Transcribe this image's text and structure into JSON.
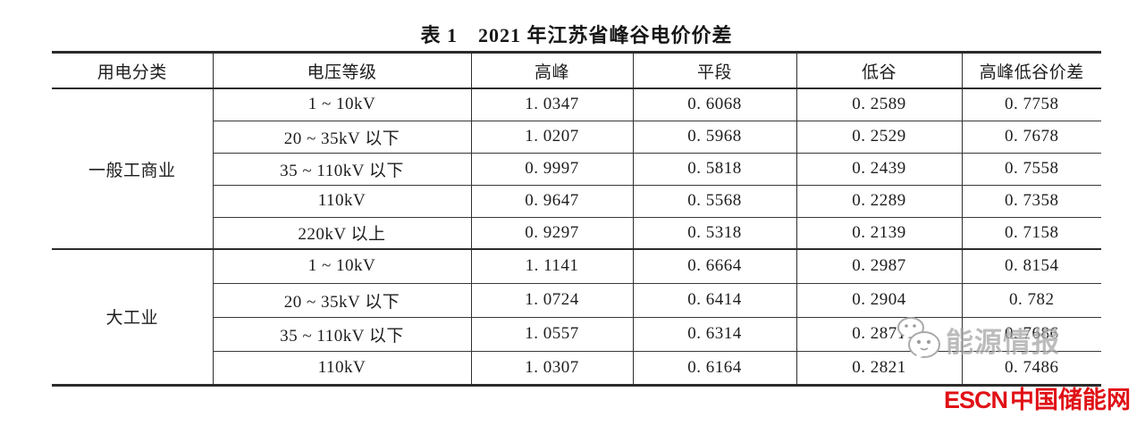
{
  "table": {
    "title": "表 1　2021 年江苏省峰谷电价价差",
    "columns": [
      "用电分类",
      "电压等级",
      "高峰",
      "平段",
      "低谷",
      "高峰低谷价差"
    ],
    "groups": [
      {
        "category": "一般工商业",
        "rows": [
          {
            "voltage": "1 ~ 10kV",
            "peak": "1. 0347",
            "flat": "0. 6068",
            "valley": "0. 2589",
            "diff": "0. 7758"
          },
          {
            "voltage": "20 ~ 35kV 以下",
            "peak": "1. 0207",
            "flat": "0. 5968",
            "valley": "0. 2529",
            "diff": "0. 7678"
          },
          {
            "voltage": "35 ~ 110kV 以下",
            "peak": "0. 9997",
            "flat": "0. 5818",
            "valley": "0. 2439",
            "diff": "0. 7558"
          },
          {
            "voltage": "110kV",
            "peak": "0. 9647",
            "flat": "0. 5568",
            "valley": "0. 2289",
            "diff": "0. 7358"
          },
          {
            "voltage": "220kV 以上",
            "peak": "0. 9297",
            "flat": "0. 5318",
            "valley": "0. 2139",
            "diff": "0. 7158"
          }
        ]
      },
      {
        "category": "大工业",
        "rows": [
          {
            "voltage": "1 ~ 10kV",
            "peak": "1. 1141",
            "flat": "0. 6664",
            "valley": "0. 2987",
            "diff": "0. 8154"
          },
          {
            "voltage": "20 ~ 35kV 以下",
            "peak": "1. 0724",
            "flat": "0. 6414",
            "valley": "0. 2904",
            "diff": "0. 782"
          },
          {
            "voltage": "35 ~ 110kV 以下",
            "peak": "1. 0557",
            "flat": "0. 6314",
            "valley": "0. 2871",
            "diff": "0. 7686"
          },
          {
            "voltage": "110kV",
            "peak": "1. 0307",
            "flat": "0. 6164",
            "valley": "0. 2821",
            "diff": "0. 7486"
          }
        ]
      }
    ]
  },
  "watermark": {
    "icon": "wechat-icon",
    "text": "能源情报"
  },
  "footer_logo": {
    "escn": "ESCN",
    "site": "中国储能网",
    "color": "#e01116"
  }
}
